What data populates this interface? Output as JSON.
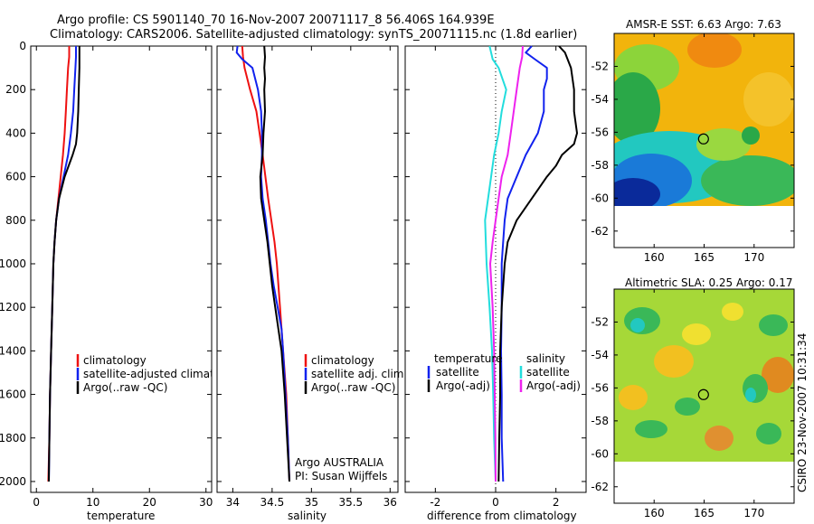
{
  "header": {
    "line1": "Argo profile: CS 5901140_70 16-Nov-2007 20071117_8 56.406S 164.939E",
    "line2": "Climatology: CARS2006. Satellite-adjusted climatology: synTS_20071115.nc (1.8d earlier)"
  },
  "side_label": "CSIRO 23-Nov-2007 10:31:34",
  "colors": {
    "climatology": "#ee1111",
    "satellite": "#1122ee",
    "argo": "#000000",
    "sal_satellite": "#22dddd",
    "sal_argo": "#ee22ee"
  },
  "chart_data": [
    {
      "id": "temperature",
      "type": "line",
      "xlabel": "temperature",
      "ylabel": "",
      "xlim": [
        -1,
        31
      ],
      "ylim": [
        2050,
        0
      ],
      "xticks": [
        "0",
        "10",
        "20",
        "30"
      ],
      "xtick_values": [
        0,
        10,
        20,
        30
      ],
      "yticks": [
        "0",
        "200",
        "400",
        "600",
        "800",
        "1000",
        "1200",
        "1400",
        "1600",
        "1800",
        "2000"
      ],
      "ytick_values": [
        0,
        200,
        400,
        600,
        800,
        1000,
        1200,
        1400,
        1600,
        1800,
        2000
      ],
      "legend": [
        "climatology",
        "satellite-adjusted climatology",
        "Argo(..raw -QC)"
      ],
      "legend_position": "lower-left",
      "series": [
        {
          "name": "climatology",
          "color": "#ee1111",
          "depth": [
            0,
            50,
            100,
            200,
            300,
            400,
            500,
            600,
            700,
            800,
            900,
            1000,
            1200,
            1400,
            1600,
            1800,
            2000
          ],
          "values": [
            5.8,
            5.8,
            5.6,
            5.4,
            5.2,
            5.0,
            4.7,
            4.3,
            3.9,
            3.5,
            3.2,
            3.0,
            2.8,
            2.6,
            2.4,
            2.3,
            2.1
          ]
        },
        {
          "name": "satellite-adjusted climatology",
          "color": "#1122ee",
          "depth": [
            0,
            50,
            100,
            200,
            300,
            400,
            500,
            600,
            700,
            800,
            900,
            1000,
            1200,
            1400,
            1600,
            1800,
            2000
          ],
          "values": [
            7.0,
            7.0,
            6.9,
            6.7,
            6.5,
            6.1,
            5.6,
            4.8,
            4.0,
            3.5,
            3.2,
            3.0,
            2.8,
            2.6,
            2.4,
            2.3,
            2.2
          ]
        },
        {
          "name": "Argo(..raw -QC)",
          "color": "#000000",
          "depth": [
            0,
            50,
            100,
            200,
            300,
            400,
            450,
            500,
            600,
            700,
            800,
            900,
            1000,
            1200,
            1400,
            1600,
            1800,
            2000
          ],
          "values": [
            7.6,
            7.6,
            7.6,
            7.5,
            7.4,
            7.2,
            7.0,
            6.4,
            5.0,
            4.0,
            3.5,
            3.2,
            3.0,
            2.8,
            2.6,
            2.4,
            2.3,
            2.2
          ]
        }
      ]
    },
    {
      "id": "salinity",
      "type": "line",
      "xlabel": "salinity",
      "ylabel": "",
      "xlim": [
        33.8,
        36.1
      ],
      "ylim": [
        2050,
        0
      ],
      "xticks": [
        "34",
        "34.5",
        "35",
        "35.5",
        "36"
      ],
      "xtick_values": [
        34,
        34.5,
        35,
        35.5,
        36
      ],
      "legend": [
        "climatology",
        "satellite adj. clim.",
        "Argo(..raw -QC)"
      ],
      "legend_position": "lower-center",
      "annotations": [
        "Argo AUSTRALIA",
        "PI: Susan Wijffels"
      ],
      "series": [
        {
          "name": "climatology",
          "color": "#ee1111",
          "depth": [
            0,
            50,
            100,
            200,
            300,
            400,
            500,
            700,
            900,
            1000,
            1200,
            1400,
            1600,
            1800,
            2000
          ],
          "values": [
            34.12,
            34.13,
            34.15,
            34.22,
            34.3,
            34.34,
            34.38,
            34.45,
            34.53,
            34.56,
            34.6,
            34.64,
            34.68,
            34.7,
            34.72
          ]
        },
        {
          "name": "satellite adj. clim.",
          "color": "#1122ee",
          "depth": [
            0,
            30,
            60,
            100,
            200,
            300,
            400,
            500,
            600,
            700,
            800,
            900,
            1000,
            1100,
            1200,
            1300,
            1400,
            1600,
            1800,
            2000
          ],
          "values": [
            34.06,
            34.05,
            34.12,
            34.25,
            34.32,
            34.36,
            34.37,
            34.37,
            34.36,
            34.38,
            34.42,
            34.45,
            34.48,
            34.52,
            34.57,
            34.62,
            34.64,
            34.67,
            34.7,
            34.72
          ]
        },
        {
          "name": "Argo(..raw -QC)",
          "color": "#000000",
          "depth": [
            0,
            50,
            100,
            150,
            200,
            300,
            400,
            500,
            600,
            700,
            800,
            900,
            1000,
            1100,
            1200,
            1300,
            1400,
            1600,
            1800,
            2000
          ],
          "values": [
            34.4,
            34.41,
            34.4,
            34.41,
            34.4,
            34.41,
            34.39,
            34.38,
            34.35,
            34.36,
            34.4,
            34.44,
            34.47,
            34.5,
            34.54,
            34.58,
            34.62,
            34.66,
            34.69,
            34.72
          ]
        }
      ]
    },
    {
      "id": "difference",
      "type": "line",
      "xlabel": "difference from climatology",
      "ylabel": "",
      "xlim": [
        -3,
        3
      ],
      "ylim": [
        2050,
        0
      ],
      "xticks": [
        "-2",
        "0",
        "2"
      ],
      "xtick_values": [
        -2,
        0,
        2
      ],
      "legend_temperature": {
        "title": "temperature",
        "items": [
          "satellite",
          "Argo(-adj)"
        ]
      },
      "legend_salinity": {
        "title": "salinity",
        "items": [
          "satellite",
          "Argo(-adj)"
        ]
      },
      "legend_position": "lower-center",
      "series": [
        {
          "name": "temperature satellite",
          "color": "#1122ee",
          "depth": [
            0,
            30,
            60,
            100,
            150,
            200,
            300,
            400,
            500,
            600,
            700,
            800,
            900,
            1000,
            1200,
            1400,
            1600,
            1800,
            2000
          ],
          "values": [
            1.2,
            1.0,
            1.3,
            1.7,
            1.7,
            1.6,
            1.6,
            1.4,
            1.0,
            0.7,
            0.4,
            0.3,
            0.25,
            0.2,
            0.2,
            0.18,
            0.2,
            0.2,
            0.25
          ]
        },
        {
          "name": "temperature Argo(-adj)",
          "color": "#000000",
          "depth": [
            0,
            30,
            100,
            200,
            300,
            400,
            450,
            500,
            550,
            600,
            700,
            800,
            900,
            1000,
            1200,
            1400,
            1600,
            1800,
            2000
          ],
          "values": [
            2.1,
            2.3,
            2.5,
            2.6,
            2.6,
            2.7,
            2.6,
            2.2,
            2.0,
            1.7,
            1.2,
            0.7,
            0.4,
            0.3,
            0.2,
            0.15,
            0.15,
            0.12,
            0.1
          ]
        },
        {
          "name": "salinity satellite",
          "color": "#22dddd",
          "depth": [
            0,
            30,
            60,
            100,
            200,
            300,
            400,
            500,
            600,
            800,
            1000,
            1200,
            1400,
            1600,
            1800,
            2000
          ],
          "values": [
            -0.2,
            -0.15,
            -0.1,
            0.1,
            0.35,
            0.2,
            0.1,
            -0.05,
            -0.15,
            -0.35,
            -0.3,
            -0.2,
            -0.12,
            -0.08,
            -0.05,
            0.0
          ]
        },
        {
          "name": "salinity Argo(-adj)",
          "color": "#ee22ee",
          "depth": [
            0,
            50,
            100,
            150,
            200,
            300,
            400,
            500,
            600,
            700,
            800,
            900,
            1000,
            1200,
            1400,
            1600,
            1800,
            2000
          ],
          "values": [
            0.9,
            0.88,
            0.8,
            0.75,
            0.7,
            0.6,
            0.5,
            0.4,
            0.2,
            0.1,
            0.0,
            -0.1,
            -0.18,
            -0.1,
            -0.05,
            -0.03,
            -0.01,
            0.0
          ]
        }
      ]
    },
    {
      "id": "sst_map",
      "type": "heatmap",
      "title": "AMSR-E SST: 6.63 Argo: 7.63",
      "xlim": [
        156,
        174
      ],
      "ylim": [
        -63,
        -50
      ],
      "xticks": [
        "160",
        "165",
        "170"
      ],
      "xtick_values": [
        160,
        165,
        170
      ],
      "yticks": [
        "-52",
        "-54",
        "-56",
        "-58",
        "-60",
        "-62"
      ],
      "ytick_values": [
        -52,
        -54,
        -56,
        -58,
        -60,
        -62
      ],
      "data_lat_range": [
        -60,
        -50
      ],
      "float_position": {
        "lon": 164.939,
        "lat": -56.406
      }
    },
    {
      "id": "sla_map",
      "type": "heatmap",
      "title": "Altimetric SLA: 0.25 Argo: 0.17",
      "xlim": [
        156,
        174
      ],
      "ylim": [
        -63,
        -50
      ],
      "xticks": [
        "160",
        "165",
        "170"
      ],
      "xtick_values": [
        160,
        165,
        170
      ],
      "yticks": [
        "-52",
        "-54",
        "-56",
        "-58",
        "-60",
        "-62"
      ],
      "ytick_values": [
        -52,
        -54,
        -56,
        -58,
        -60,
        -62
      ],
      "data_lat_range": [
        -60,
        -50
      ],
      "float_position": {
        "lon": 164.939,
        "lat": -56.406
      }
    }
  ]
}
